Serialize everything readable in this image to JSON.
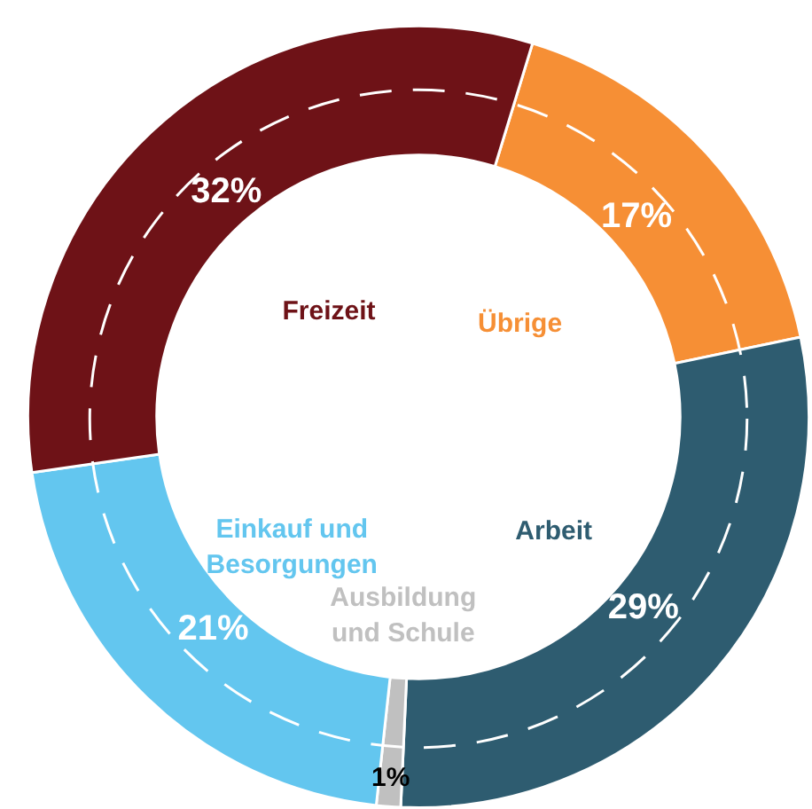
{
  "chart_data": {
    "type": "donut",
    "categories": [
      "Übrige",
      "Arbeit",
      "Ausbildung und Schule",
      "Einkauf und Besorgungen",
      "Freizeit"
    ],
    "values": [
      17,
      29,
      1,
      21,
      32
    ],
    "value_labels": [
      "17%",
      "29%",
      "1%",
      "21%",
      "32%"
    ],
    "colors": [
      "#f68f35",
      "#2e5c70",
      "#c0c0c0",
      "#63c6ef",
      "#6e1217"
    ],
    "legend": false
  }
}
